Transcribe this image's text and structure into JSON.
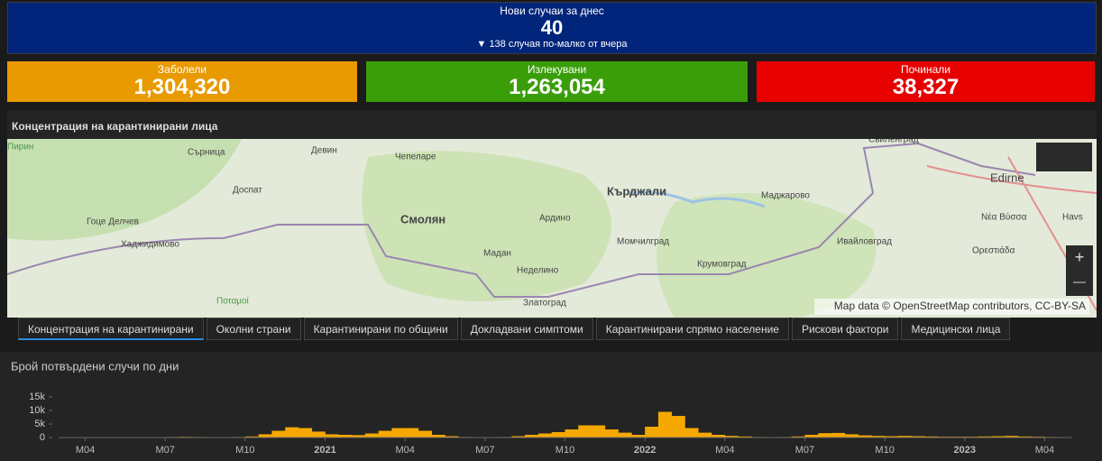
{
  "header": {
    "title": "Нови случаи за днес",
    "value": "40",
    "note": "▼ 138 случая по-малко от вчера"
  },
  "cards": [
    {
      "title": "Заболели",
      "value": "1,304,320",
      "color": "#e89a00"
    },
    {
      "title": "Излекувани",
      "value": "1,263,054",
      "color": "#3a9e0a"
    },
    {
      "title": "Починали",
      "value": "38,327",
      "color": "#e60000"
    }
  ],
  "map": {
    "title": "Концентрация на карантинирани лица",
    "places": [
      "Пирин",
      "Сърница",
      "Девин",
      "Чепеларе",
      "Свиленград",
      "Доспат",
      "Кърджали",
      "Маджарово",
      "Edirne",
      "Гоце Делчев",
      "Смолян",
      "Ардино",
      "Νέα Βύσσα",
      "Хаджидимово",
      "Момчилград",
      "Ивайловград",
      "Havs",
      "Мадан",
      "Ορεστιάδα",
      "Неделино",
      "Крумовград",
      "Златоград",
      "Ποταμοί"
    ],
    "attribution": "Map data © OpenStreetMap contributors, CC-BY-SA",
    "zoom_in": "+",
    "zoom_out": "—"
  },
  "tabs": [
    "Концентрация на карантинирани",
    "Околни страни",
    "Карантинирани по общини",
    "Докладвани симптоми",
    "Карантинирани спрямо население",
    "Рискови фактори",
    "Медицински лица"
  ],
  "chart_data": {
    "type": "bar",
    "title": "Брой потвърдени случи по дни",
    "color": "#f5a800",
    "categories": [
      null,
      null,
      "M04",
      null,
      null,
      null,
      null,
      null,
      "M07",
      null,
      null,
      null,
      null,
      null,
      "M10",
      null,
      null,
      null,
      null,
      null,
      "2021",
      null,
      null,
      null,
      null,
      null,
      "M04",
      null,
      null,
      null,
      null,
      null,
      "M07",
      null,
      null,
      null,
      null,
      null,
      "M10",
      null,
      null,
      null,
      null,
      null,
      "2022",
      null,
      null,
      null,
      null,
      null,
      "M04",
      null,
      null,
      null,
      null,
      null,
      "M07",
      null,
      null,
      null,
      null,
      null,
      "M10",
      null,
      null,
      null,
      null,
      null,
      "2023",
      null,
      null,
      null,
      null,
      null,
      "M04",
      null
    ],
    "values": [
      20,
      30,
      40,
      40,
      40,
      30,
      80,
      100,
      200,
      250,
      200,
      150,
      150,
      200,
      400,
      1200,
      2500,
      3800,
      3500,
      2200,
      1200,
      1000,
      900,
      1500,
      2500,
      3500,
      3500,
      2500,
      1000,
      500,
      200,
      100,
      100,
      200,
      500,
      1000,
      1500,
      2000,
      3000,
      4500,
      4500,
      3000,
      1800,
      1000,
      4000,
      9500,
      8000,
      3500,
      1800,
      1000,
      600,
      400,
      200,
      150,
      200,
      400,
      1000,
      1600,
      1700,
      1200,
      800,
      600,
      500,
      600,
      500,
      400,
      300,
      300,
      300,
      400,
      500,
      600,
      400,
      300,
      200,
      150
    ],
    "ylim": [
      0,
      15000
    ],
    "yticks": [
      0,
      {
        "value": 5000,
        "label": "5k"
      },
      {
        "value": 10000,
        "label": "10k"
      },
      {
        "value": 15000,
        "label": "15k"
      }
    ],
    "grid": false
  }
}
